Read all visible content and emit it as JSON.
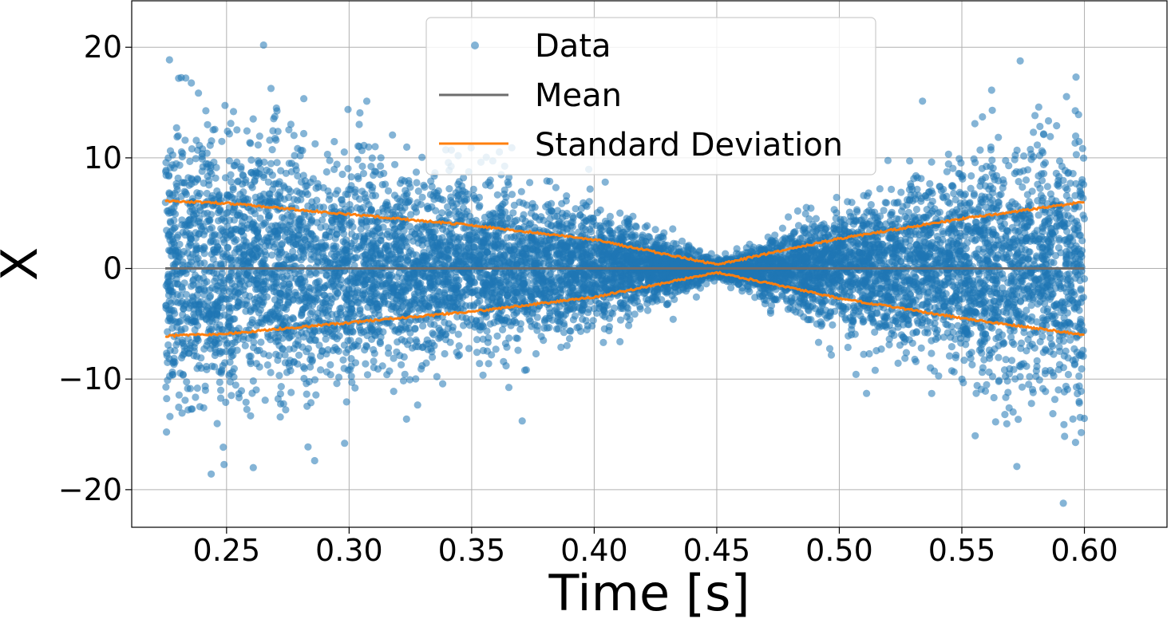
{
  "chart_data": {
    "type": "scatter",
    "title": "",
    "xlabel": "Time [s]",
    "ylabel": "X",
    "xlim": [
      0.2113,
      0.6337
    ],
    "ylim": [
      -23.4,
      24.2
    ],
    "xticks": [
      0.25,
      0.3,
      0.35,
      0.4,
      0.45,
      0.5,
      0.55,
      0.6
    ],
    "xtick_labels": [
      "0.25",
      "0.30",
      "0.35",
      "0.40",
      "0.45",
      "0.50",
      "0.55",
      "0.60"
    ],
    "yticks": [
      -20,
      -10,
      0,
      10,
      20
    ],
    "ytick_labels": [
      "−20",
      "−10",
      "0",
      "10",
      "20"
    ],
    "grid": true,
    "legend_position": "top-center",
    "series": [
      {
        "name": "Data",
        "kind": "scatter",
        "color": "#1f77b4",
        "alpha": 0.55,
        "x_range": [
          0.225,
          0.6
        ],
        "approx_point_count": 9000,
        "spread_rule": "std grows linearly with |t - 0.45|; std(0.225) = std(0.60) = 6.1, std(0.45) = 0.3"
      },
      {
        "name": "Mean",
        "kind": "line",
        "color": "#6d6d6d",
        "x": [
          0.225,
          0.6
        ],
        "y": [
          0,
          0
        ]
      },
      {
        "name": "Standard Deviation",
        "kind": "line",
        "color": "#ff7f0e",
        "x": [
          0.225,
          0.25,
          0.3,
          0.35,
          0.4,
          0.45,
          0.5,
          0.55,
          0.6
        ],
        "upper": [
          6.1,
          5.9,
          4.9,
          3.9,
          2.6,
          0.35,
          2.7,
          4.5,
          6.0
        ],
        "lower": [
          -6.1,
          -5.9,
          -4.9,
          -3.9,
          -2.6,
          -0.35,
          -2.7,
          -4.5,
          -6.0
        ]
      }
    ]
  }
}
